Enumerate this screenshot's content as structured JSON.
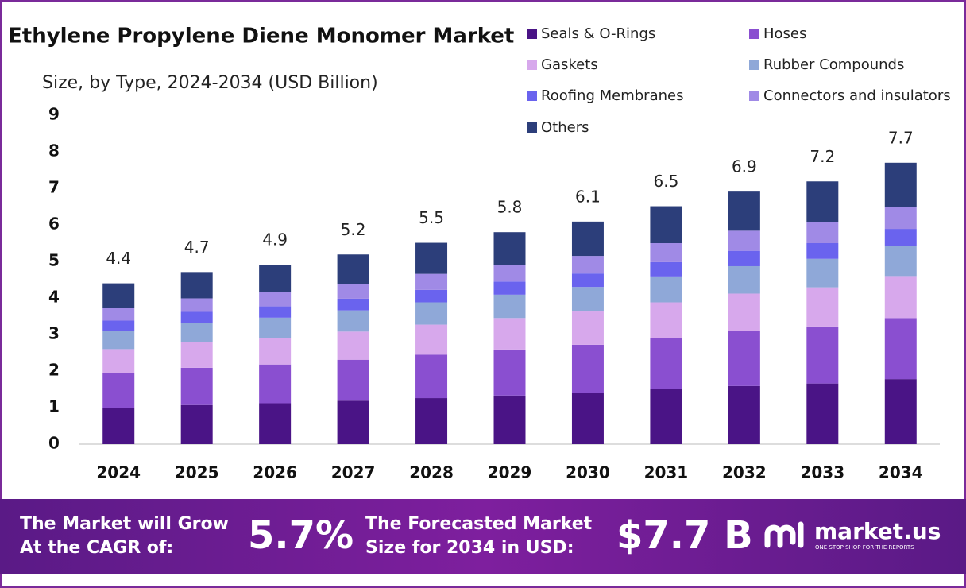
{
  "chart_data": {
    "type": "stacked_bar",
    "title": "Ethylene Propylene Diene Monomer Market",
    "subtitle": "Size, by Type, 2024-2034 (USD Billion)",
    "categories": [
      "2024",
      "2025",
      "2026",
      "2027",
      "2028",
      "2029",
      "2030",
      "2031",
      "2032",
      "2033",
      "2034"
    ],
    "series": [
      {
        "name": "Seals & O-Rings",
        "color": "#4a1486",
        "values": [
          1.0,
          1.07,
          1.12,
          1.19,
          1.26,
          1.33,
          1.4,
          1.5,
          1.59,
          1.66,
          1.78
        ]
      },
      {
        "name": "Hoses",
        "color": "#8a4fd0",
        "values": [
          0.95,
          1.02,
          1.06,
          1.12,
          1.19,
          1.26,
          1.32,
          1.41,
          1.5,
          1.56,
          1.67
        ]
      },
      {
        "name": "Gaskets",
        "color": "#d7a8ec",
        "values": [
          0.65,
          0.7,
          0.73,
          0.77,
          0.82,
          0.86,
          0.91,
          0.97,
          1.03,
          1.07,
          1.15
        ]
      },
      {
        "name": "Rubber Compounds",
        "color": "#8fa8d8",
        "values": [
          0.5,
          0.53,
          0.55,
          0.58,
          0.61,
          0.64,
          0.67,
          0.71,
          0.75,
          0.78,
          0.83
        ]
      },
      {
        "name": "Roofing Membranes",
        "color": "#6a63ee",
        "values": [
          0.28,
          0.3,
          0.31,
          0.32,
          0.34,
          0.36,
          0.37,
          0.39,
          0.42,
          0.43,
          0.46
        ]
      },
      {
        "name": "Connectors and insulators",
        "color": "#a08ae6",
        "values": [
          0.35,
          0.37,
          0.39,
          0.41,
          0.44,
          0.46,
          0.48,
          0.52,
          0.55,
          0.57,
          0.61
        ]
      },
      {
        "name": "Others",
        "color": "#2c3e7a",
        "values": [
          0.67,
          0.72,
          0.75,
          0.8,
          0.85,
          0.89,
          0.94,
          1.01,
          1.07,
          1.12,
          1.2
        ]
      }
    ],
    "totals": [
      4.4,
      4.7,
      4.9,
      5.2,
      5.5,
      5.8,
      6.1,
      6.5,
      6.9,
      7.2,
      7.7
    ],
    "ylim": [
      0,
      9
    ],
    "yticks": [
      0,
      1,
      2,
      3,
      4,
      5,
      6,
      7,
      8,
      9
    ],
    "grid": false
  },
  "footer": {
    "cagr_text": [
      "The Market will Grow",
      "At the CAGR of:"
    ],
    "cagr": "5.7%",
    "forecast_text": [
      "The Forecasted Market",
      "Size for 2034 in USD:"
    ],
    "forecast": "$7.7 B",
    "brand": "market.us",
    "tagline": "ONE STOP SHOP FOR THE REPORTS"
  }
}
